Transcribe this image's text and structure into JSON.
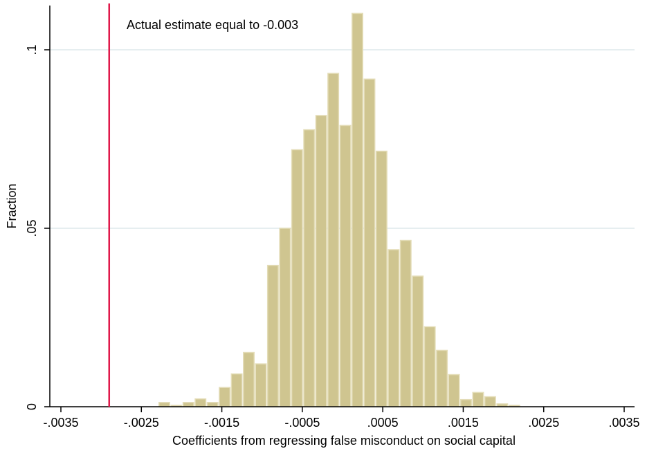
{
  "chart_data": {
    "type": "bar",
    "title": "",
    "xlabel": "Coefficients from regressing false misconduct on social capital",
    "ylabel": "Fraction",
    "xlim": [
      -0.0035,
      0.0035
    ],
    "ylim": [
      0,
      0.1
    ],
    "x_ticks": [
      {
        "value": -0.0035,
        "label": "-.0035"
      },
      {
        "value": -0.0025,
        "label": "-.0025"
      },
      {
        "value": -0.0015,
        "label": "-.0015"
      },
      {
        "value": -0.0005,
        "label": "-.0005"
      },
      {
        "value": 0.0005,
        "label": ".0005"
      },
      {
        "value": 0.0015,
        "label": ".0015"
      },
      {
        "value": 0.0025,
        "label": ".0025"
      },
      {
        "value": 0.0035,
        "label": ".0035"
      }
    ],
    "y_ticks": [
      {
        "value": 0,
        "label": "0"
      },
      {
        "value": 0.05,
        "label": ".05"
      },
      {
        "value": 0.1,
        "label": ".1"
      }
    ],
    "grid": true,
    "bin_width": 0.00015,
    "bins": [
      {
        "start": -0.00229,
        "value": 0.0012
      },
      {
        "start": -0.00214,
        "value": 0.0004
      },
      {
        "start": -0.00199,
        "value": 0.0012
      },
      {
        "start": -0.00184,
        "value": 0.0022
      },
      {
        "start": -0.00169,
        "value": 0.0012
      },
      {
        "start": -0.00154,
        "value": 0.0054
      },
      {
        "start": -0.00139,
        "value": 0.0092
      },
      {
        "start": -0.00124,
        "value": 0.0152
      },
      {
        "start": -0.00109,
        "value": 0.012
      },
      {
        "start": -0.00094,
        "value": 0.0396
      },
      {
        "start": -0.00079,
        "value": 0.05
      },
      {
        "start": -0.00064,
        "value": 0.072
      },
      {
        "start": -0.00049,
        "value": 0.0776
      },
      {
        "start": -0.00034,
        "value": 0.0816
      },
      {
        "start": -0.00019,
        "value": 0.0934
      },
      {
        "start": -4e-05,
        "value": 0.0788
      },
      {
        "start": 0.00011,
        "value": 0.1102
      },
      {
        "start": 0.00026,
        "value": 0.0918
      },
      {
        "start": 0.00041,
        "value": 0.0716
      },
      {
        "start": 0.00056,
        "value": 0.044
      },
      {
        "start": 0.00071,
        "value": 0.0466
      },
      {
        "start": 0.00086,
        "value": 0.0366
      },
      {
        "start": 0.00101,
        "value": 0.0224
      },
      {
        "start": 0.00116,
        "value": 0.0158
      },
      {
        "start": 0.00131,
        "value": 0.009
      },
      {
        "start": 0.00146,
        "value": 0.002
      },
      {
        "start": 0.00161,
        "value": 0.004
      },
      {
        "start": 0.00176,
        "value": 0.0028
      },
      {
        "start": 0.00191,
        "value": 0.0008
      },
      {
        "start": 0.00206,
        "value": 0.0004
      }
    ],
    "reference_line": {
      "value": -0.0029,
      "annotation": "Actual estimate equal to -0.003"
    },
    "colors": {
      "bar_fill": "#cfc590",
      "bar_edge": "#e4ddb8",
      "reference_line": "#e0194a",
      "grid": "#dde9ec",
      "axis": "#000000"
    }
  }
}
